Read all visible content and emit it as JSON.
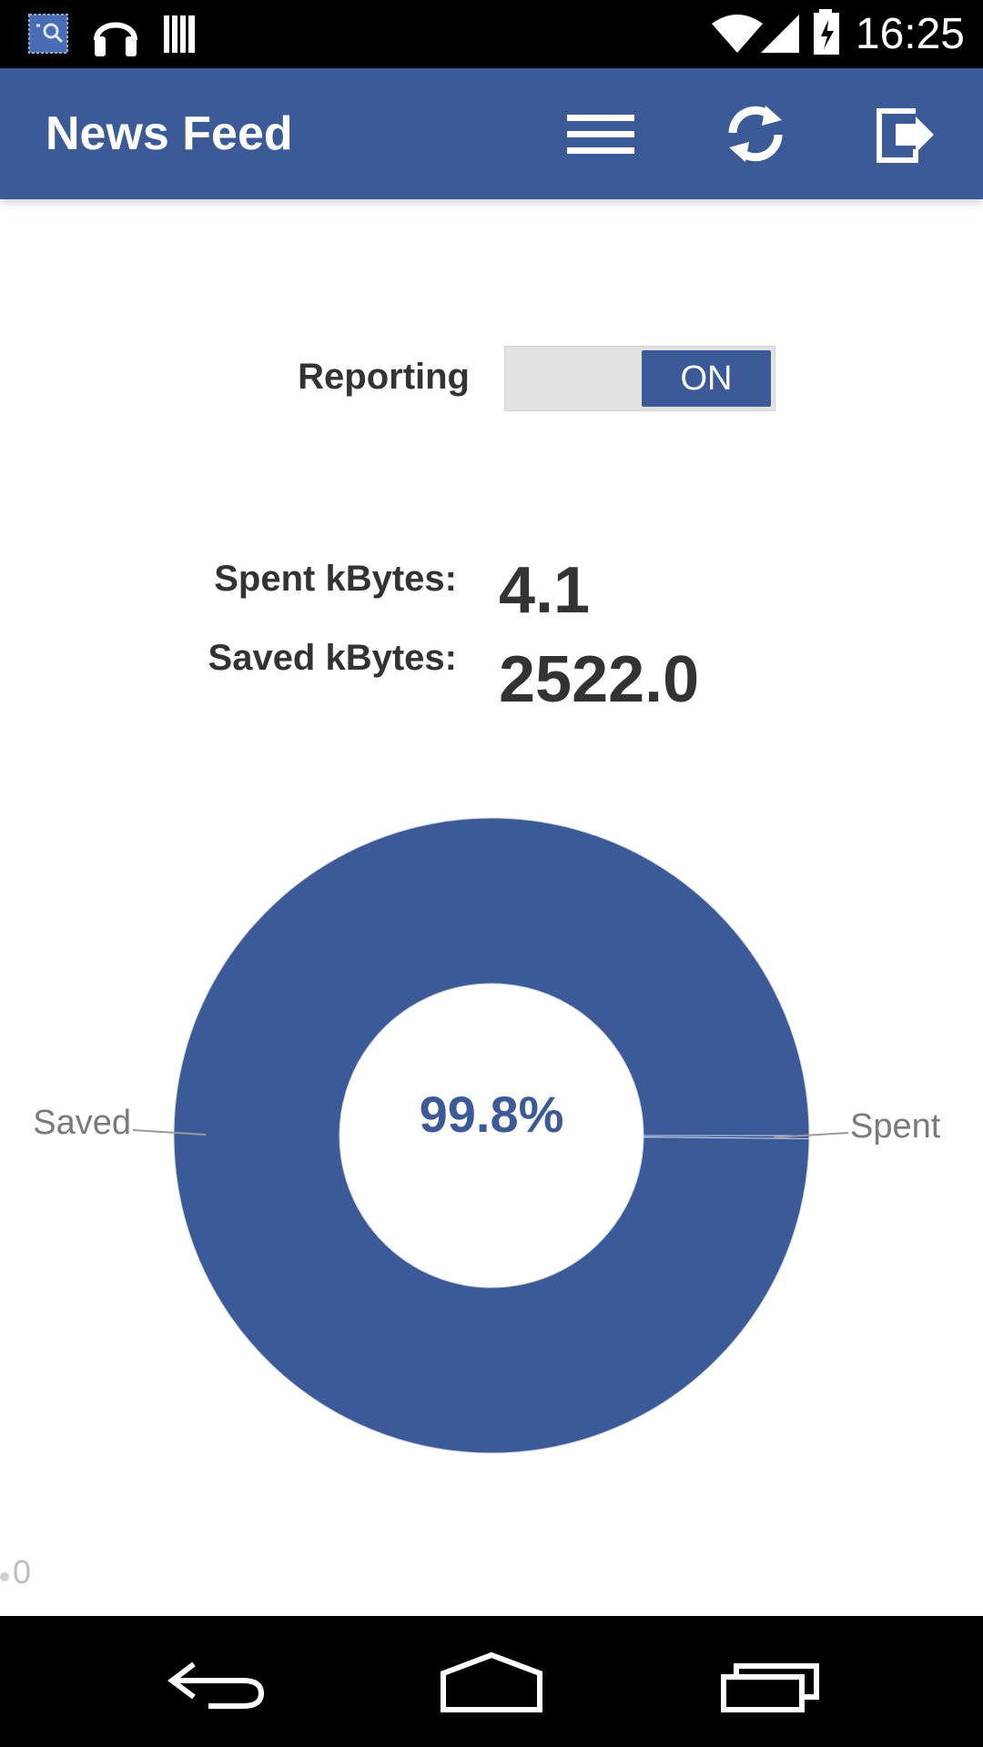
{
  "status_bar": {
    "time": "16:25",
    "icons": [
      "gallery-icon",
      "headphones-icon",
      "barcode-icon",
      "wifi-icon",
      "signal-icon",
      "battery-charging-icon"
    ]
  },
  "app_bar": {
    "title": "News Feed",
    "actions": [
      "menu-icon",
      "refresh-icon",
      "logout-icon"
    ],
    "color": "#3d5a98"
  },
  "reporting": {
    "label": "Reporting",
    "toggle_state": "ON"
  },
  "stats": {
    "spent_label": "Spent kBytes:",
    "spent_value": "4.1",
    "saved_label": "Saved kBytes:",
    "saved_value": "2522.0"
  },
  "axis_zero": "0",
  "chart_data": {
    "type": "pie",
    "donut": true,
    "center_label": "99.8%",
    "slices": [
      {
        "label": "Saved",
        "value": 2522.0,
        "color": "#3d5a98"
      },
      {
        "label": "Spent",
        "value": 4.1,
        "color": "#3d5a98"
      }
    ]
  },
  "nav_bar": {
    "buttons": [
      "back-icon",
      "home-icon",
      "recents-icon"
    ]
  }
}
